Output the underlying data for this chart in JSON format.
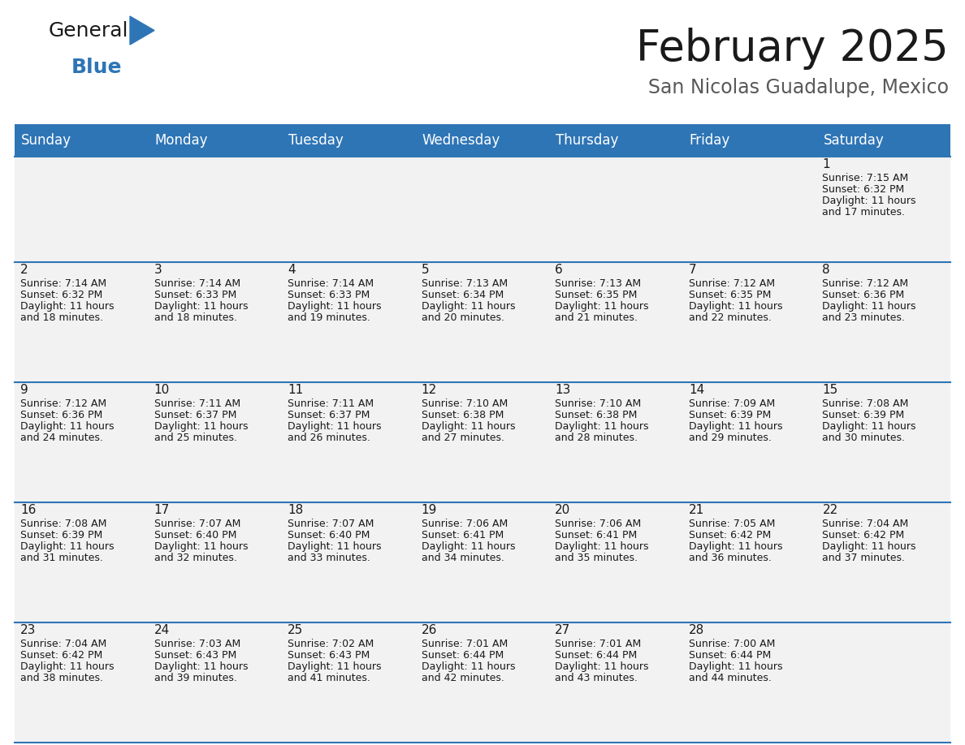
{
  "title": "February 2025",
  "subtitle": "San Nicolas Guadalupe, Mexico",
  "header_bg": "#2E75B6",
  "header_text_color": "#FFFFFF",
  "cell_bg_light": "#F2F2F2",
  "border_color": "#2E75B6",
  "text_color": "#1a1a1a",
  "subtitle_color": "#595959",
  "day_headers": [
    "Sunday",
    "Monday",
    "Tuesday",
    "Wednesday",
    "Thursday",
    "Friday",
    "Saturday"
  ],
  "days": [
    {
      "day": 1,
      "col": 6,
      "row": 0,
      "sunrise": "7:15 AM",
      "sunset": "6:32 PM",
      "minutes": "17"
    },
    {
      "day": 2,
      "col": 0,
      "row": 1,
      "sunrise": "7:14 AM",
      "sunset": "6:32 PM",
      "minutes": "18"
    },
    {
      "day": 3,
      "col": 1,
      "row": 1,
      "sunrise": "7:14 AM",
      "sunset": "6:33 PM",
      "minutes": "18"
    },
    {
      "day": 4,
      "col": 2,
      "row": 1,
      "sunrise": "7:14 AM",
      "sunset": "6:33 PM",
      "minutes": "19"
    },
    {
      "day": 5,
      "col": 3,
      "row": 1,
      "sunrise": "7:13 AM",
      "sunset": "6:34 PM",
      "minutes": "20"
    },
    {
      "day": 6,
      "col": 4,
      "row": 1,
      "sunrise": "7:13 AM",
      "sunset": "6:35 PM",
      "minutes": "21"
    },
    {
      "day": 7,
      "col": 5,
      "row": 1,
      "sunrise": "7:12 AM",
      "sunset": "6:35 PM",
      "minutes": "22"
    },
    {
      "day": 8,
      "col": 6,
      "row": 1,
      "sunrise": "7:12 AM",
      "sunset": "6:36 PM",
      "minutes": "23"
    },
    {
      "day": 9,
      "col": 0,
      "row": 2,
      "sunrise": "7:12 AM",
      "sunset": "6:36 PM",
      "minutes": "24"
    },
    {
      "day": 10,
      "col": 1,
      "row": 2,
      "sunrise": "7:11 AM",
      "sunset": "6:37 PM",
      "minutes": "25"
    },
    {
      "day": 11,
      "col": 2,
      "row": 2,
      "sunrise": "7:11 AM",
      "sunset": "6:37 PM",
      "minutes": "26"
    },
    {
      "day": 12,
      "col": 3,
      "row": 2,
      "sunrise": "7:10 AM",
      "sunset": "6:38 PM",
      "minutes": "27"
    },
    {
      "day": 13,
      "col": 4,
      "row": 2,
      "sunrise": "7:10 AM",
      "sunset": "6:38 PM",
      "minutes": "28"
    },
    {
      "day": 14,
      "col": 5,
      "row": 2,
      "sunrise": "7:09 AM",
      "sunset": "6:39 PM",
      "minutes": "29"
    },
    {
      "day": 15,
      "col": 6,
      "row": 2,
      "sunrise": "7:08 AM",
      "sunset": "6:39 PM",
      "minutes": "30"
    },
    {
      "day": 16,
      "col": 0,
      "row": 3,
      "sunrise": "7:08 AM",
      "sunset": "6:39 PM",
      "minutes": "31"
    },
    {
      "day": 17,
      "col": 1,
      "row": 3,
      "sunrise": "7:07 AM",
      "sunset": "6:40 PM",
      "minutes": "32"
    },
    {
      "day": 18,
      "col": 2,
      "row": 3,
      "sunrise": "7:07 AM",
      "sunset": "6:40 PM",
      "minutes": "33"
    },
    {
      "day": 19,
      "col": 3,
      "row": 3,
      "sunrise": "7:06 AM",
      "sunset": "6:41 PM",
      "minutes": "34"
    },
    {
      "day": 20,
      "col": 4,
      "row": 3,
      "sunrise": "7:06 AM",
      "sunset": "6:41 PM",
      "minutes": "35"
    },
    {
      "day": 21,
      "col": 5,
      "row": 3,
      "sunrise": "7:05 AM",
      "sunset": "6:42 PM",
      "minutes": "36"
    },
    {
      "day": 22,
      "col": 6,
      "row": 3,
      "sunrise": "7:04 AM",
      "sunset": "6:42 PM",
      "minutes": "37"
    },
    {
      "day": 23,
      "col": 0,
      "row": 4,
      "sunrise": "7:04 AM",
      "sunset": "6:42 PM",
      "minutes": "38"
    },
    {
      "day": 24,
      "col": 1,
      "row": 4,
      "sunrise": "7:03 AM",
      "sunset": "6:43 PM",
      "minutes": "39"
    },
    {
      "day": 25,
      "col": 2,
      "row": 4,
      "sunrise": "7:02 AM",
      "sunset": "6:43 PM",
      "minutes": "41"
    },
    {
      "day": 26,
      "col": 3,
      "row": 4,
      "sunrise": "7:01 AM",
      "sunset": "6:44 PM",
      "minutes": "42"
    },
    {
      "day": 27,
      "col": 4,
      "row": 4,
      "sunrise": "7:01 AM",
      "sunset": "6:44 PM",
      "minutes": "43"
    },
    {
      "day": 28,
      "col": 5,
      "row": 4,
      "sunrise": "7:00 AM",
      "sunset": "6:44 PM",
      "minutes": "44"
    }
  ],
  "title_fontsize": 38,
  "subtitle_fontsize": 17,
  "header_fontsize": 12,
  "daynum_fontsize": 11,
  "info_fontsize": 9,
  "fig_width": 11.88,
  "fig_height": 9.18,
  "dpi": 100
}
